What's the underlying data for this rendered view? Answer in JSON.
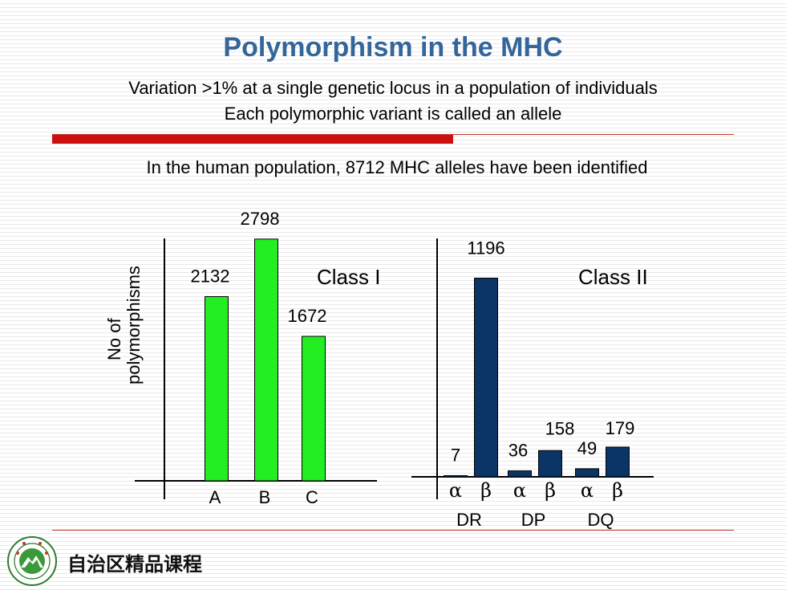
{
  "title": "Polymorphism in the MHC",
  "subtitle_lines": [
    "Variation >1% at a single genetic locus in a population of individuals",
    "Each polymorphic variant is called an allele"
  ],
  "intro": "In the human population,  8712 MHC alleles have been identified",
  "footer": {
    "text": "自治区精品课程"
  },
  "colors": {
    "title": "#336699",
    "class_i_bar": "#22ee22",
    "class_ii_bar": "#0a3566",
    "accent_red": "#cc1010"
  },
  "chart_data": [
    {
      "type": "bar",
      "title": "Class I",
      "ylabel": [
        "No of",
        "polymorphisms"
      ],
      "categories": [
        "A",
        "B",
        "C"
      ],
      "values": [
        2132,
        2798,
        1672
      ],
      "ylim": [
        0,
        2880
      ],
      "grid": false
    },
    {
      "type": "bar",
      "title": "Class II",
      "categories": [
        "α",
        "β",
        "α",
        "β",
        "α",
        "β"
      ],
      "groups": [
        "DR",
        "DP",
        "DQ"
      ],
      "values": [
        7,
        1196,
        36,
        158,
        49,
        179
      ],
      "ylim": [
        0,
        1440
      ],
      "grid": false
    }
  ]
}
